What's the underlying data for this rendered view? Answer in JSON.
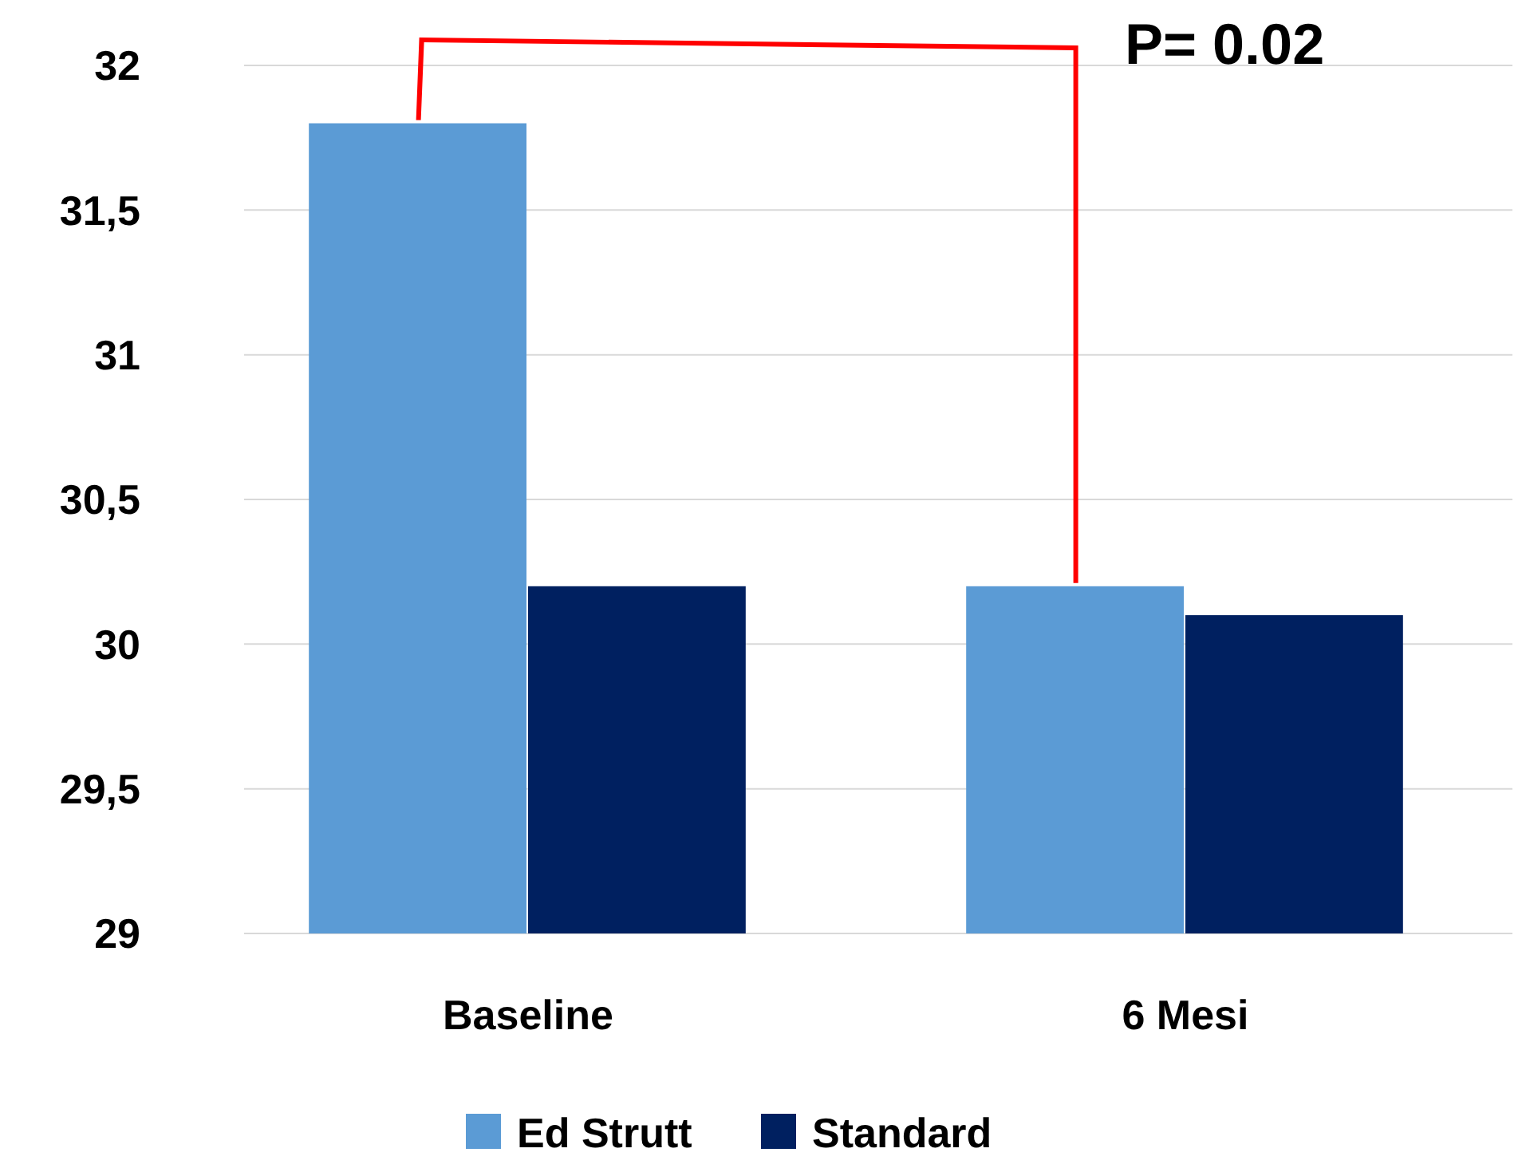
{
  "chart_data": {
    "type": "bar",
    "categories": [
      "Baseline",
      "6 Mesi"
    ],
    "series": [
      {
        "name": "Ed Strutt",
        "color": "#5b9bd5",
        "values": [
          31.8,
          30.2
        ]
      },
      {
        "name": "Standard",
        "color": "#002060",
        "values": [
          30.2,
          30.1
        ]
      }
    ],
    "ylim": [
      29,
      32
    ],
    "yticks": [
      29,
      {
        "value": 29.5,
        "label": "29,5"
      },
      30,
      {
        "value": 30.5,
        "label": "30,5"
      },
      31,
      {
        "value": 31.5,
        "label": "31,5"
      },
      32
    ],
    "grid": "y",
    "legend": "bottom",
    "annotations": [
      "P= 0.02"
    ]
  }
}
